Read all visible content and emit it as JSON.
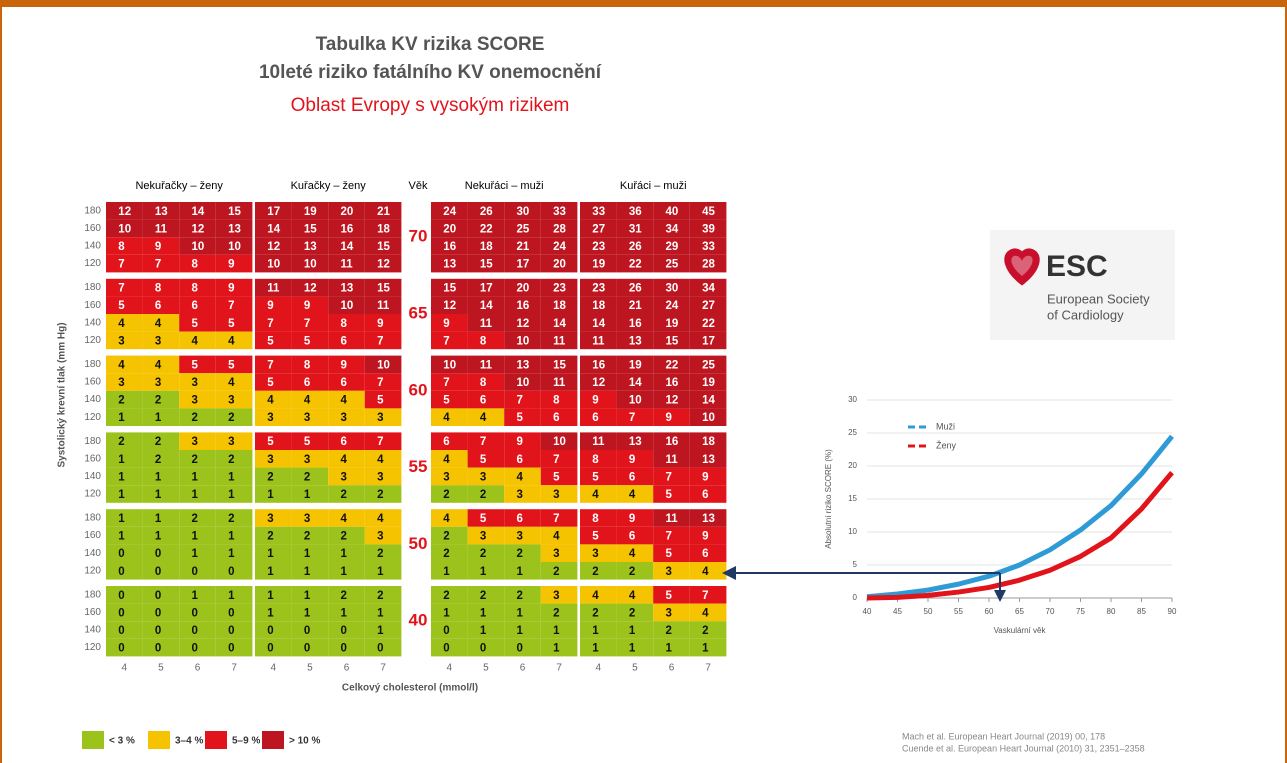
{
  "header": {
    "title": "Tabulka KV rizika SCORE",
    "subtitle": "10leté riziko fatálního KV onemocnění",
    "region": "Oblast Evropy s vysokým rizikem"
  },
  "table": {
    "panels": [
      "Nekuřačky – ženy",
      "Kuřačky – ženy",
      "Nekuřáci – muži",
      "Kuřáci – muži"
    ],
    "age_header": "Věk",
    "bp": [
      180,
      160,
      140,
      120
    ],
    "cholesterol": [
      4,
      5,
      6,
      7
    ],
    "y_label": "Systolický krevní tlak (mm Hg)",
    "x_label": "Celkový cholesterol (mmol/l)",
    "groups": [
      {
        "age": 70,
        "panels": [
          [
            [
              12,
              13,
              14,
              15
            ],
            [
              10,
              11,
              12,
              13
            ],
            [
              8,
              9,
              10,
              10
            ],
            [
              7,
              7,
              8,
              9
            ]
          ],
          [
            [
              17,
              19,
              20,
              21
            ],
            [
              14,
              15,
              16,
              18
            ],
            [
              12,
              13,
              14,
              15
            ],
            [
              10,
              10,
              11,
              12
            ]
          ],
          [
            [
              24,
              26,
              30,
              33
            ],
            [
              20,
              22,
              25,
              28
            ],
            [
              16,
              18,
              21,
              24
            ],
            [
              13,
              15,
              17,
              20
            ]
          ],
          [
            [
              33,
              36,
              40,
              45
            ],
            [
              27,
              31,
              34,
              39
            ],
            [
              23,
              26,
              29,
              33
            ],
            [
              19,
              22,
              25,
              28
            ]
          ]
        ]
      },
      {
        "age": 65,
        "panels": [
          [
            [
              7,
              8,
              8,
              9
            ],
            [
              5,
              6,
              6,
              7
            ],
            [
              4,
              4,
              5,
              5
            ],
            [
              3,
              3,
              4,
              4
            ]
          ],
          [
            [
              11,
              12,
              13,
              15
            ],
            [
              9,
              9,
              10,
              11
            ],
            [
              7,
              7,
              8,
              9
            ],
            [
              5,
              5,
              6,
              7
            ]
          ],
          [
            [
              15,
              17,
              20,
              23
            ],
            [
              12,
              14,
              16,
              18
            ],
            [
              9,
              11,
              12,
              14
            ],
            [
              7,
              8,
              10,
              11
            ]
          ],
          [
            [
              23,
              26,
              30,
              34
            ],
            [
              18,
              21,
              24,
              27
            ],
            [
              14,
              16,
              19,
              22
            ],
            [
              11,
              13,
              15,
              17
            ]
          ]
        ]
      },
      {
        "age": 60,
        "panels": [
          [
            [
              4,
              4,
              5,
              5
            ],
            [
              3,
              3,
              3,
              4
            ],
            [
              2,
              2,
              3,
              3
            ],
            [
              1,
              1,
              2,
              2
            ]
          ],
          [
            [
              7,
              8,
              9,
              10
            ],
            [
              5,
              6,
              6,
              7
            ],
            [
              4,
              4,
              4,
              5
            ],
            [
              3,
              3,
              3,
              3
            ]
          ],
          [
            [
              10,
              11,
              13,
              15
            ],
            [
              7,
              8,
              10,
              11
            ],
            [
              5,
              6,
              7,
              8
            ],
            [
              4,
              4,
              5,
              6
            ]
          ],
          [
            [
              16,
              19,
              22,
              25
            ],
            [
              12,
              14,
              16,
              19
            ],
            [
              9,
              10,
              12,
              14
            ],
            [
              6,
              7,
              9,
              10
            ]
          ]
        ]
      },
      {
        "age": 55,
        "panels": [
          [
            [
              2,
              2,
              3,
              3
            ],
            [
              1,
              2,
              2,
              2
            ],
            [
              1,
              1,
              1,
              1
            ],
            [
              1,
              1,
              1,
              1
            ]
          ],
          [
            [
              5,
              5,
              6,
              7
            ],
            [
              3,
              3,
              4,
              4
            ],
            [
              2,
              2,
              3,
              3
            ],
            [
              1,
              1,
              2,
              2
            ]
          ],
          [
            [
              6,
              7,
              9,
              10
            ],
            [
              4,
              5,
              6,
              7
            ],
            [
              3,
              3,
              4,
              5
            ],
            [
              2,
              2,
              3,
              3
            ]
          ],
          [
            [
              11,
              13,
              16,
              18
            ],
            [
              8,
              9,
              11,
              13
            ],
            [
              5,
              6,
              7,
              9
            ],
            [
              4,
              4,
              5,
              6
            ]
          ]
        ]
      },
      {
        "age": 50,
        "panels": [
          [
            [
              1,
              1,
              2,
              2
            ],
            [
              1,
              1,
              1,
              1
            ],
            [
              0,
              0,
              1,
              1
            ],
            [
              0,
              0,
              0,
              0
            ]
          ],
          [
            [
              3,
              3,
              4,
              4
            ],
            [
              2,
              2,
              2,
              3
            ],
            [
              1,
              1,
              1,
              2
            ],
            [
              1,
              1,
              1,
              1
            ]
          ],
          [
            [
              4,
              5,
              6,
              7
            ],
            [
              2,
              3,
              3,
              4
            ],
            [
              2,
              2,
              2,
              3
            ],
            [
              1,
              1,
              1,
              2
            ]
          ],
          [
            [
              8,
              9,
              11,
              13
            ],
            [
              5,
              6,
              7,
              9
            ],
            [
              3,
              4,
              5,
              6
            ],
            [
              2,
              2,
              3,
              4
            ]
          ]
        ]
      },
      {
        "age": 40,
        "panels": [
          [
            [
              0,
              0,
              1,
              1
            ],
            [
              0,
              0,
              0,
              0
            ],
            [
              0,
              0,
              0,
              0
            ],
            [
              0,
              0,
              0,
              0
            ]
          ],
          [
            [
              1,
              1,
              2,
              2
            ],
            [
              1,
              1,
              1,
              1
            ],
            [
              0,
              0,
              0,
              1
            ],
            [
              0,
              0,
              0,
              0
            ]
          ],
          [
            [
              2,
              2,
              2,
              3
            ],
            [
              1,
              1,
              1,
              2
            ],
            [
              0,
              1,
              1,
              1
            ],
            [
              0,
              0,
              0,
              1
            ]
          ],
          [
            [
              4,
              4,
              5,
              7
            ],
            [
              2,
              2,
              3,
              4
            ],
            [
              1,
              1,
              2,
              2
            ],
            [
              1,
              1,
              1,
              1
            ]
          ]
        ]
      }
    ]
  },
  "legend": [
    {
      "label": "< 3 %",
      "color": "#9cc31c",
      "from": 0
    },
    {
      "label": "3–4 %",
      "color": "#f6c300",
      "from": 3
    },
    {
      "label": "5–9 %",
      "color": "#e2141b",
      "from": 5
    },
    {
      "label": "> 10 %",
      "color": "#bd1620",
      "from": 10
    }
  ],
  "logo": {
    "name": "ESC",
    "line1": "European Society",
    "line2": "of Cardiology"
  },
  "chart_data": {
    "type": "line",
    "x": [
      40,
      45,
      50,
      55,
      60,
      65,
      70,
      75,
      80,
      85,
      90
    ],
    "series": [
      {
        "name": "Muži",
        "color": "#2e9bd6",
        "values": [
          0.2,
          0.6,
          1.2,
          2.1,
          3.3,
          5,
          7.3,
          10.3,
          14,
          18.8,
          24.5
        ]
      },
      {
        "name": "Ženy",
        "color": "#e2141b",
        "values": [
          0,
          0.1,
          0.4,
          0.9,
          1.6,
          2.7,
          4.2,
          6.3,
          9.1,
          13.5,
          19
        ]
      }
    ],
    "xlim": [
      40,
      90
    ],
    "ylim": [
      0,
      30
    ],
    "xticks": [
      40,
      45,
      50,
      55,
      60,
      65,
      70,
      75,
      80,
      85,
      90
    ],
    "yticks": [
      0,
      5,
      10,
      15,
      20,
      25,
      30
    ],
    "x_label": "Vaskulární věk",
    "y_label": "Absolutní riziko SCORE (%)",
    "grid": true
  },
  "references": [
    "Mach et al. European Heart Journal (2019) 00, 178",
    "Cuende et al. European Heart Journal (2010) 31, 2351–2358"
  ]
}
